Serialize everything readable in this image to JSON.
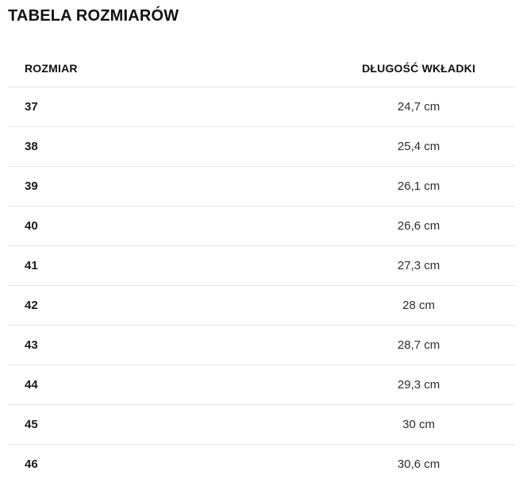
{
  "page": {
    "title": "TABELA ROZMIARÓW"
  },
  "table": {
    "headers": {
      "size": "ROZMIAR",
      "length": "DŁUGOŚĆ WKŁADKI"
    },
    "rows": [
      {
        "size": "37",
        "length": "24,7 cm"
      },
      {
        "size": "38",
        "length": "25,4 cm"
      },
      {
        "size": "39",
        "length": "26,1 cm"
      },
      {
        "size": "40",
        "length": "26,6 cm"
      },
      {
        "size": "41",
        "length": "27,3 cm"
      },
      {
        "size": "42",
        "length": "28 cm"
      },
      {
        "size": "43",
        "length": "28,7 cm"
      },
      {
        "size": "44",
        "length": "29,3 cm"
      },
      {
        "size": "45",
        "length": "30 cm"
      },
      {
        "size": "46",
        "length": "30,6 cm"
      }
    ]
  },
  "colors": {
    "background": "#ffffff",
    "text": "#1a1a1a",
    "divider": "#e4e4e4"
  },
  "chart_data": {
    "type": "table",
    "title": "TABELA ROZMIARÓW",
    "columns": [
      "ROZMIAR",
      "DŁUGOŚĆ WKŁADKI"
    ],
    "rows": [
      [
        "37",
        "24,7 cm"
      ],
      [
        "38",
        "25,4 cm"
      ],
      [
        "39",
        "26,1 cm"
      ],
      [
        "40",
        "26,6 cm"
      ],
      [
        "41",
        "27,3 cm"
      ],
      [
        "42",
        "28 cm"
      ],
      [
        "43",
        "28,7 cm"
      ],
      [
        "44",
        "29,3 cm"
      ],
      [
        "45",
        "30 cm"
      ],
      [
        "46",
        "30,6 cm"
      ]
    ]
  }
}
